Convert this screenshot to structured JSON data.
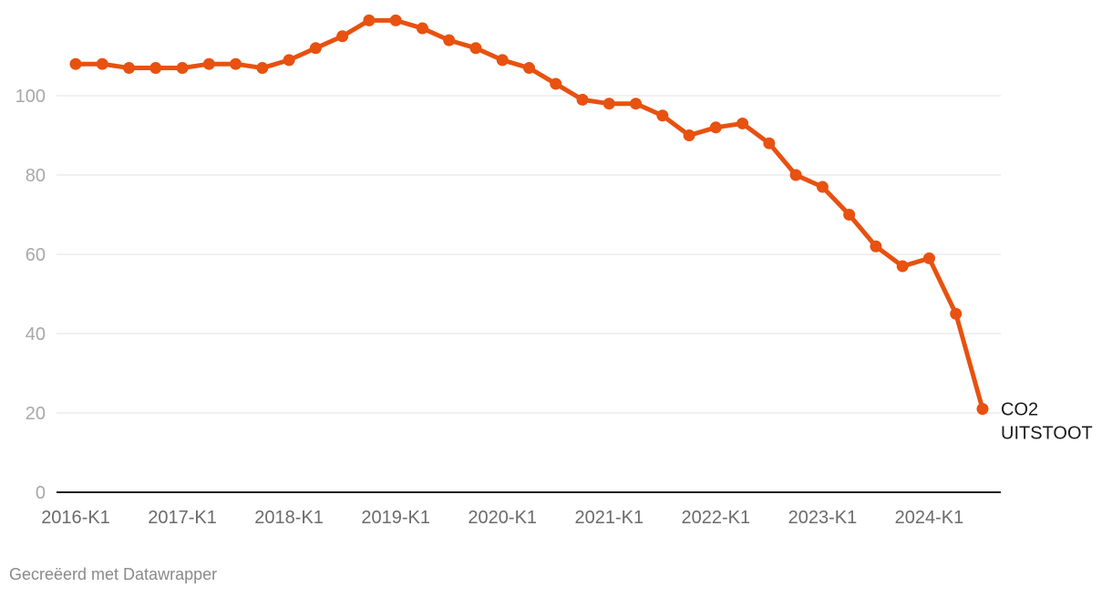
{
  "chart_data": {
    "type": "line",
    "categories": [
      "2016-K1",
      "2016-K2",
      "2016-K3",
      "2016-K4",
      "2017-K1",
      "2017-K2",
      "2017-K3",
      "2017-K4",
      "2018-K1",
      "2018-K2",
      "2018-K3",
      "2018-K4",
      "2019-K1",
      "2019-K2",
      "2019-K3",
      "2019-K4",
      "2020-K1",
      "2020-K2",
      "2020-K3",
      "2020-K4",
      "2021-K1",
      "2021-K2",
      "2021-K3",
      "2021-K4",
      "2022-K1",
      "2022-K2",
      "2022-K3",
      "2022-K4",
      "2023-K1",
      "2023-K2",
      "2023-K3",
      "2023-K4",
      "2024-K1",
      "2024-K2",
      "2024-K3"
    ],
    "x_tick_labels": [
      "2016-K1",
      "2017-K1",
      "2018-K1",
      "2019-K1",
      "2020-K1",
      "2021-K1",
      "2022-K1",
      "2023-K1",
      "2024-K1"
    ],
    "y_ticks": [
      0,
      20,
      40,
      60,
      80,
      100
    ],
    "ylim": [
      0,
      120
    ],
    "grid": true,
    "series": [
      {
        "name": "CO2 UITSTOOT",
        "label_lines": [
          "CO2",
          "UITSTOOT"
        ],
        "color": "#e8510f",
        "values": [
          108,
          108,
          107,
          107,
          107,
          108,
          108,
          107,
          109,
          112,
          115,
          119,
          119,
          117,
          114,
          112,
          109,
          107,
          103,
          99,
          98,
          98,
          95,
          90,
          92,
          93,
          88,
          80,
          77,
          70,
          62,
          57,
          59,
          45,
          21
        ]
      }
    ],
    "title": "",
    "xlabel": "",
    "ylabel": ""
  },
  "footer": {
    "credit": "Gecreëerd met Datawrapper"
  }
}
